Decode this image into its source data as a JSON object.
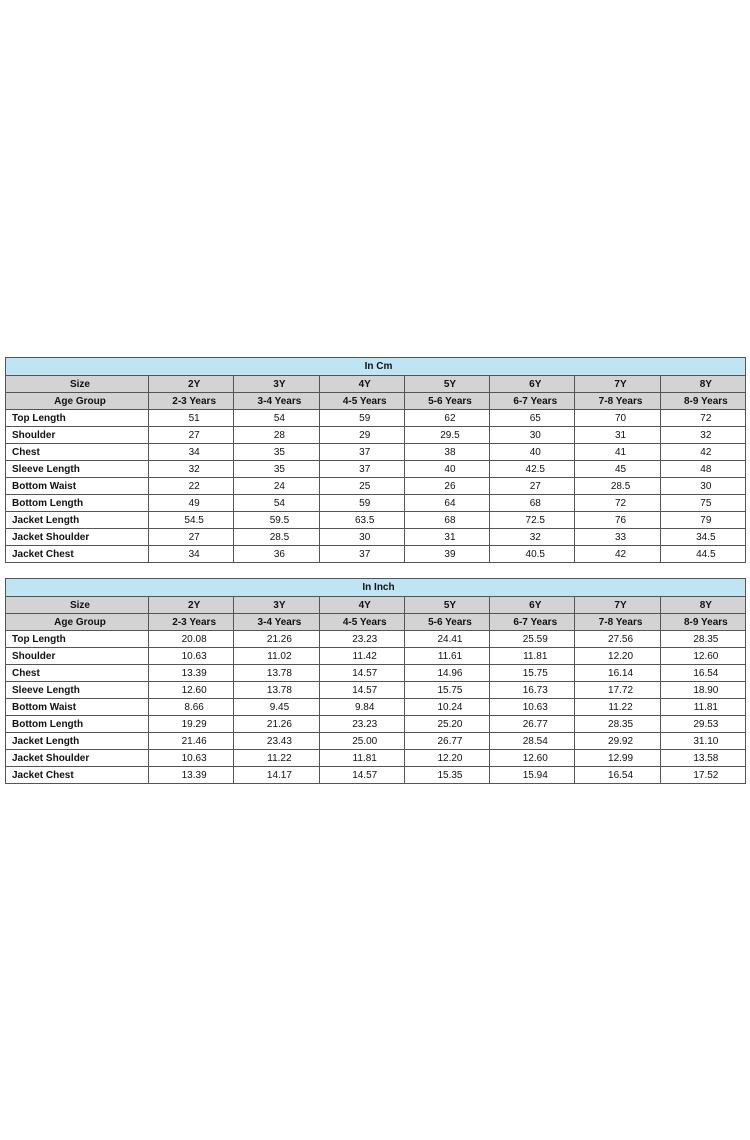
{
  "sizes": [
    "2Y",
    "3Y",
    "4Y",
    "5Y",
    "6Y",
    "7Y",
    "8Y"
  ],
  "age_groups": [
    "2-3 Years",
    "3-4 Years",
    "4-5 Years",
    "5-6 Years",
    "6-7 Years",
    "7-8 Years",
    "8-9 Years"
  ],
  "size_label": "Size",
  "age_group_label": "Age Group",
  "colors": {
    "title_bg": "#bfe5f5",
    "header_bg": "#d3d3d3",
    "border": "#555555"
  },
  "tables": [
    {
      "title": "In Cm",
      "rows": [
        {
          "label": "Top Length",
          "values": [
            "51",
            "54",
            "59",
            "62",
            "65",
            "70",
            "72"
          ]
        },
        {
          "label": "Shoulder",
          "values": [
            "27",
            "28",
            "29",
            "29.5",
            "30",
            "31",
            "32"
          ]
        },
        {
          "label": "Chest",
          "values": [
            "34",
            "35",
            "37",
            "38",
            "40",
            "41",
            "42"
          ]
        },
        {
          "label": "Sleeve Length",
          "values": [
            "32",
            "35",
            "37",
            "40",
            "42.5",
            "45",
            "48"
          ]
        },
        {
          "label": "Bottom Waist",
          "values": [
            "22",
            "24",
            "25",
            "26",
            "27",
            "28.5",
            "30"
          ]
        },
        {
          "label": "Bottom Length",
          "values": [
            "49",
            "54",
            "59",
            "64",
            "68",
            "72",
            "75"
          ]
        },
        {
          "label": "Jacket Length",
          "values": [
            "54.5",
            "59.5",
            "63.5",
            "68",
            "72.5",
            "76",
            "79"
          ]
        },
        {
          "label": "Jacket Shoulder",
          "values": [
            "27",
            "28.5",
            "30",
            "31",
            "32",
            "33",
            "34.5"
          ]
        },
        {
          "label": "Jacket Chest",
          "values": [
            "34",
            "36",
            "37",
            "39",
            "40.5",
            "42",
            "44.5"
          ]
        }
      ]
    },
    {
      "title": "In Inch",
      "rows": [
        {
          "label": "Top Length",
          "values": [
            "20.08",
            "21.26",
            "23.23",
            "24.41",
            "25.59",
            "27.56",
            "28.35"
          ]
        },
        {
          "label": "Shoulder",
          "values": [
            "10.63",
            "11.02",
            "11.42",
            "11.61",
            "11.81",
            "12.20",
            "12.60"
          ]
        },
        {
          "label": "Chest",
          "values": [
            "13.39",
            "13.78",
            "14.57",
            "14.96",
            "15.75",
            "16.14",
            "16.54"
          ]
        },
        {
          "label": "Sleeve Length",
          "values": [
            "12.60",
            "13.78",
            "14.57",
            "15.75",
            "16.73",
            "17.72",
            "18.90"
          ]
        },
        {
          "label": "Bottom Waist",
          "values": [
            "8.66",
            "9.45",
            "9.84",
            "10.24",
            "10.63",
            "11.22",
            "11.81"
          ]
        },
        {
          "label": "Bottom Length",
          "values": [
            "19.29",
            "21.26",
            "23.23",
            "25.20",
            "26.77",
            "28.35",
            "29.53"
          ]
        },
        {
          "label": "Jacket Length",
          "values": [
            "21.46",
            "23.43",
            "25.00",
            "26.77",
            "28.54",
            "29.92",
            "31.10"
          ]
        },
        {
          "label": "Jacket Shoulder",
          "values": [
            "10.63",
            "11.22",
            "11.81",
            "12.20",
            "12.60",
            "12.99",
            "13.58"
          ]
        },
        {
          "label": "Jacket Chest",
          "values": [
            "13.39",
            "14.17",
            "14.57",
            "15.35",
            "15.94",
            "16.54",
            "17.52"
          ]
        }
      ]
    }
  ]
}
